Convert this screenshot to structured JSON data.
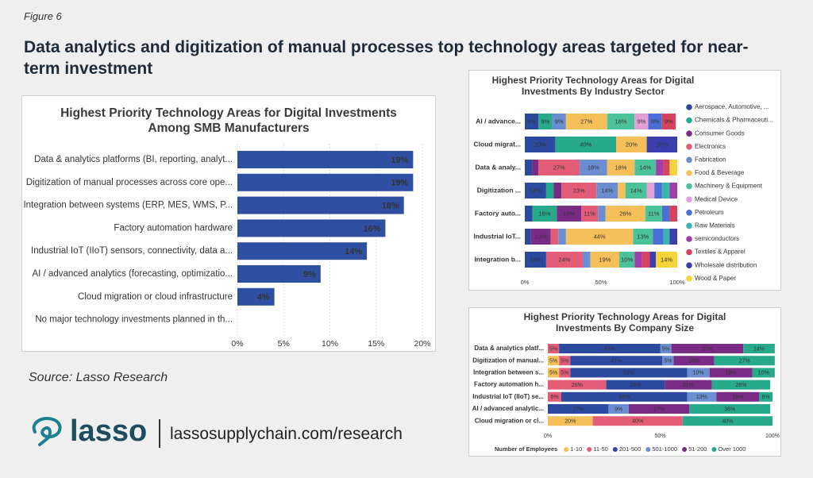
{
  "figure_label": "Figure 6",
  "headline": "Data analytics and digitization of manual processes top technology areas targeted for near-term investment",
  "source": "Source: Lasso Research",
  "logo_text": "lasso",
  "url": "lassosupplychain.com/research",
  "chart_data": [
    {
      "type": "bar",
      "horizontal": true,
      "title": "Highest Priority Technology Areas for Digital Investments Among SMB Manufacturers",
      "categories": [
        "Data & analytics platforms (BI, reporting, analyt...",
        "Digitization of manual processes across core ope...",
        "Integration between systems (ERP, MES, WMS, P...",
        "Factory automation hardware",
        "Industrial IoT (IIoT) sensors, connectivity, data a...",
        "AI / advanced analytics (forecasting, optimizatio...",
        "Cloud migration or cloud infrastructure",
        "No major technology investments planned in th..."
      ],
      "values": [
        19,
        19,
        18,
        16,
        14,
        9,
        4,
        0
      ],
      "value_labels": [
        "19%",
        "19%",
        "18%",
        "16%",
        "14%",
        "9%",
        "4%",
        null
      ],
      "color": "#2f4fa2",
      "grid": true,
      "xlim": [
        0,
        20
      ],
      "xticks": [
        {
          "value": 0,
          "label": "0%"
        },
        {
          "value": 5,
          "label": "5%"
        },
        {
          "value": 10,
          "label": "10%"
        },
        {
          "value": 15,
          "label": "15%"
        },
        {
          "value": 20,
          "label": "20%"
        }
      ]
    },
    {
      "type": "bar",
      "horizontal": true,
      "stacked": true,
      "title": "Highest Priority Technology Areas for Digital Investments By Industry Sector",
      "legend": "right",
      "categories": [
        "AI / advance...",
        "Cloud migrat...",
        "Data & analy...",
        "Digitization ...",
        "Factory auto...",
        "Industrial IoT...",
        "Integration b..."
      ],
      "xlim": [
        0,
        100
      ],
      "xticks": [
        {
          "value": 0,
          "label": "0%"
        },
        {
          "value": 50,
          "label": "50%"
        },
        {
          "value": 100,
          "label": "100%"
        }
      ],
      "series": [
        {
          "name": "Aerospace, Automotive, ...",
          "color": "#2b4a9f",
          "values": [
            9,
            20,
            5,
            14,
            5,
            4,
            14
          ],
          "value_labels": [
            "9%",
            "20%",
            null,
            "14%",
            null,
            null,
            "14%"
          ]
        },
        {
          "name": "Chemicals & Pharmaceuti...",
          "color": "#27a98b",
          "values": [
            9,
            40,
            0,
            5,
            16,
            0,
            0
          ],
          "value_labels": [
            "9%",
            "40%",
            null,
            null,
            "16%",
            null,
            null
          ]
        },
        {
          "name": "Consumer Goods",
          "color": "#7a2b86",
          "values": [
            0,
            0,
            4,
            5,
            16,
            13,
            0
          ],
          "value_labels": [
            null,
            null,
            null,
            null,
            "16%",
            "13%",
            null
          ]
        },
        {
          "name": "Electronics",
          "color": "#e35d79",
          "values": [
            0,
            0,
            27,
            23,
            11,
            5,
            24
          ],
          "value_labels": [
            null,
            null,
            "27%",
            "23%",
            "11%",
            null,
            "24%"
          ]
        },
        {
          "name": "Fabrication",
          "color": "#6b8ed3",
          "values": [
            9,
            0,
            18,
            14,
            5,
            5,
            5
          ],
          "value_labels": [
            "9%",
            null,
            "18%",
            "14%",
            null,
            null,
            null
          ]
        },
        {
          "name": "Food & Beverage",
          "color": "#f5c05a",
          "values": [
            27,
            20,
            18,
            5,
            26,
            44,
            19
          ],
          "value_labels": [
            "27%",
            "20%",
            "18%",
            null,
            "26%",
            "44%",
            "19%"
          ]
        },
        {
          "name": "Machinery & Equipment",
          "color": "#4cc29a",
          "values": [
            18,
            0,
            14,
            14,
            11,
            13,
            10
          ],
          "value_labels": [
            "18%",
            null,
            "14%",
            "14%",
            "11%",
            "13%",
            "10%"
          ]
        },
        {
          "name": "Medical Device",
          "color": "#e49fd6",
          "values": [
            9,
            0,
            0,
            5,
            0,
            0,
            0
          ],
          "value_labels": [
            "9%",
            null,
            null,
            null,
            null,
            null,
            null
          ]
        },
        {
          "name": "Petroleum",
          "color": "#4a6fd5",
          "values": [
            9,
            0,
            0,
            5,
            5,
            7,
            0
          ],
          "value_labels": [
            "9%",
            null,
            null,
            null,
            null,
            null,
            null
          ]
        },
        {
          "name": "Raw Materials",
          "color": "#3bb6ae",
          "values": [
            0,
            0,
            0,
            5,
            0,
            4,
            0
          ],
          "value_labels": [
            null,
            null,
            null,
            null,
            null,
            null,
            null
          ]
        },
        {
          "name": "semiconductors",
          "color": "#a23ea9",
          "values": [
            0,
            0,
            5,
            5,
            0,
            0,
            5
          ],
          "value_labels": [
            null,
            null,
            null,
            null,
            null,
            null,
            null
          ]
        },
        {
          "name": "Textiles & Apparel",
          "color": "#d8425a",
          "values": [
            9,
            0,
            4,
            0,
            5,
            0,
            5
          ],
          "value_labels": [
            "9%",
            null,
            null,
            null,
            null,
            null,
            null
          ]
        },
        {
          "name": "Wholesale distribution",
          "color": "#3c3eae",
          "values": [
            0,
            20,
            0,
            0,
            0,
            5,
            4
          ],
          "value_labels": [
            null,
            "20%",
            null,
            null,
            null,
            null,
            null
          ]
        },
        {
          "name": "Wood & Paper",
          "color": "#f6d43a",
          "values": [
            0,
            0,
            5,
            0,
            0,
            0,
            14
          ],
          "value_labels": [
            null,
            null,
            null,
            null,
            null,
            null,
            "14%"
          ]
        }
      ]
    },
    {
      "type": "bar",
      "horizontal": true,
      "stacked": true,
      "title": "Highest Priority Technology Areas for Digital Investments By Company Size",
      "legend": "bottom",
      "legend_title": "Number of Employees",
      "categories": [
        "Data & analytics platf...",
        "Digitization of manual...",
        "Integration between s...",
        "Factory automation h...",
        "Industrial IoT (IIoT) se...",
        "AI / advanced analytic...",
        "Cloud migration or cl..."
      ],
      "xlim": [
        0,
        100
      ],
      "xticks": [
        {
          "value": 0,
          "label": "0%"
        },
        {
          "value": 50,
          "label": "50%"
        },
        {
          "value": 100,
          "label": "100%"
        }
      ],
      "series": [
        {
          "name": "1-10",
          "color": "#f5c05a",
          "values": [
            0,
            5,
            5,
            0,
            0,
            0,
            20
          ],
          "value_labels": [
            null,
            "5%",
            "5%",
            null,
            null,
            null,
            "20%"
          ]
        },
        {
          "name": "11-50",
          "color": "#e35d79",
          "values": [
            5,
            5,
            5,
            26,
            6,
            0,
            40
          ],
          "value_labels": [
            "5%",
            "5%",
            "5%",
            "26%",
            "6%",
            null,
            "40%"
          ]
        },
        {
          "name": "201-500",
          "color": "#2b4a9f",
          "values": [
            45,
            41,
            52,
            26,
            56,
            27,
            0
          ],
          "value_labels": [
            "45%",
            "41%",
            "52%",
            "26%",
            "56%",
            "27%",
            null
          ]
        },
        {
          "name": "501-1000",
          "color": "#6b8ed3",
          "values": [
            5,
            5,
            10,
            0,
            13,
            9,
            0
          ],
          "value_labels": [
            "5%",
            "5%",
            "10%",
            null,
            "13%",
            "9%",
            null
          ]
        },
        {
          "name": "51-200",
          "color": "#7a2b86",
          "values": [
            32,
            18,
            19,
            21,
            19,
            27,
            0
          ],
          "value_labels": [
            "32%",
            "18%",
            "19%",
            "21%",
            "19%",
            "27%",
            null
          ]
        },
        {
          "name": "Over 1000",
          "color": "#27a98b",
          "values": [
            14,
            27,
            10,
            26,
            6,
            36,
            40
          ],
          "value_labels": [
            "14%",
            "27%",
            "10%",
            "26%",
            "6%",
            "36%",
            "40%"
          ]
        }
      ]
    }
  ]
}
